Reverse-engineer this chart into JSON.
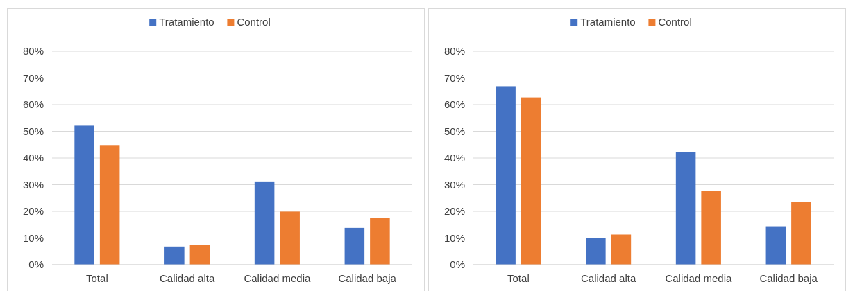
{
  "chart_data": [
    {
      "type": "bar",
      "categories": [
        "Total",
        "Calidad alta",
        "Calidad media",
        "Calidad baja"
      ],
      "series": [
        {
          "name": "Tratamiento",
          "color": "#4472c4",
          "values": [
            52.1,
            6.8,
            31.2,
            13.8
          ]
        },
        {
          "name": "Control",
          "color": "#ed7d31",
          "values": [
            44.6,
            7.3,
            19.9,
            17.6
          ]
        }
      ],
      "ylim": [
        0,
        80
      ],
      "yticks": [
        {
          "value": 0,
          "label": "0%"
        },
        {
          "value": 10,
          "label": "10%"
        },
        {
          "value": 20,
          "label": "20%"
        },
        {
          "value": 30,
          "label": "30%"
        },
        {
          "value": 40,
          "label": "40%"
        },
        {
          "value": 50,
          "label": "50%"
        },
        {
          "value": 60,
          "label": "60%"
        },
        {
          "value": 70,
          "label": "70%"
        },
        {
          "value": 80,
          "label": "80%"
        }
      ],
      "grid": "y",
      "legend": "top"
    },
    {
      "type": "bar",
      "categories": [
        "Total",
        "Calidad alta",
        "Calidad media",
        "Calidad baja"
      ],
      "series": [
        {
          "name": "Tratamiento",
          "color": "#4472c4",
          "values": [
            66.9,
            10.1,
            42.2,
            14.4
          ]
        },
        {
          "name": "Control",
          "color": "#ed7d31",
          "values": [
            62.7,
            11.3,
            27.6,
            23.5
          ]
        }
      ],
      "ylim": [
        0,
        80
      ],
      "yticks": [
        {
          "value": 0,
          "label": "0%"
        },
        {
          "value": 10,
          "label": "10%"
        },
        {
          "value": 20,
          "label": "20%"
        },
        {
          "value": 30,
          "label": "30%"
        },
        {
          "value": 40,
          "label": "40%"
        },
        {
          "value": 50,
          "label": "50%"
        },
        {
          "value": 60,
          "label": "60%"
        },
        {
          "value": 70,
          "label": "70%"
        },
        {
          "value": 80,
          "label": "80%"
        }
      ],
      "grid": "y",
      "legend": "top"
    }
  ]
}
